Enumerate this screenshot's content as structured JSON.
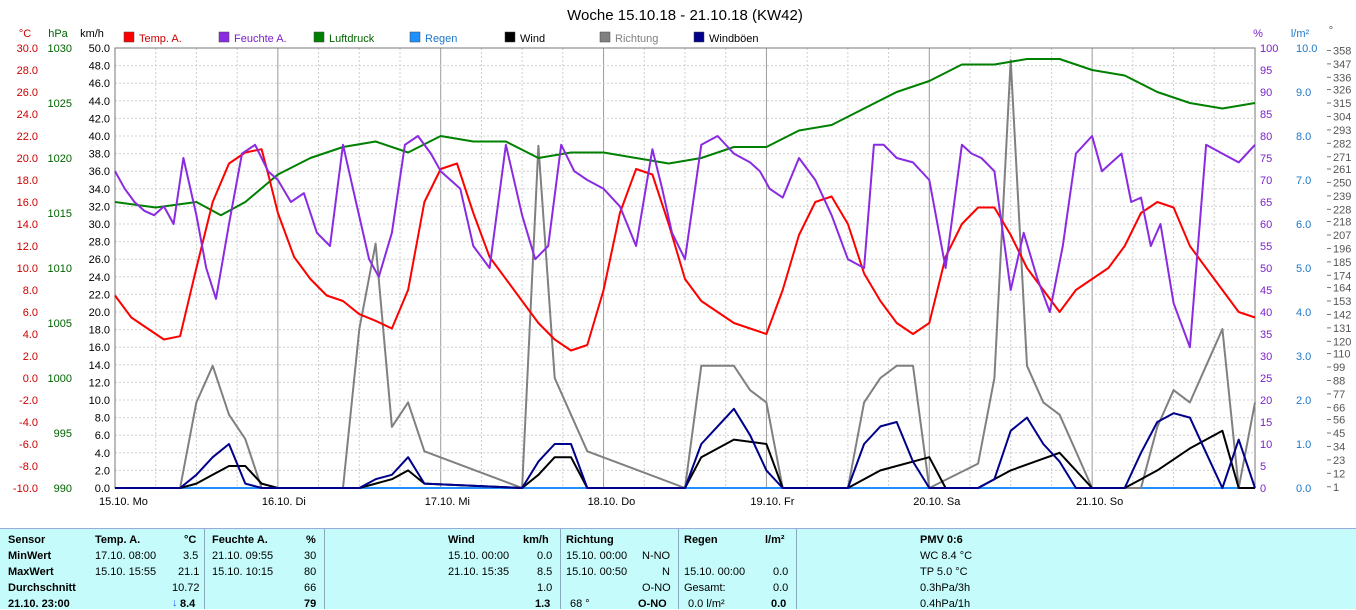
{
  "chart_data": {
    "type": "line",
    "title": "Woche 15.10.18 - 21.10.18 (KW42)",
    "axes": {
      "temp": {
        "unit": "°C",
        "range": [
          -10,
          30
        ],
        "ticks": [
          "30.0",
          "28.0",
          "26.0",
          "24.0",
          "22.0",
          "20.0",
          "18.0",
          "16.0",
          "14.0",
          "12.0",
          "10.0",
          "8.0",
          "6.0",
          "4.0",
          "2.0",
          "0.0",
          "-2.0",
          "-4.0",
          "-6.0",
          "-8.0",
          "-10.0"
        ]
      },
      "pressure": {
        "unit": "hPa",
        "range": [
          990,
          1030
        ],
        "ticks": [
          "1030",
          "1025",
          "1020",
          "1015",
          "1010",
          "1005",
          "1000",
          "995",
          "990"
        ]
      },
      "wind": {
        "unit": "km/h",
        "range": [
          0,
          50
        ],
        "ticks": [
          "50.0",
          "48.0",
          "46.0",
          "44.0",
          "42.0",
          "40.0",
          "38.0",
          "36.0",
          "34.0",
          "32.0",
          "30.0",
          "28.0",
          "26.0",
          "24.0",
          "22.0",
          "20.0",
          "18.0",
          "16.0",
          "14.0",
          "12.0",
          "10.0",
          "8.0",
          "6.0",
          "4.0",
          "2.0",
          "0.0"
        ]
      },
      "humidity": {
        "unit": "%",
        "range": [
          0,
          100
        ],
        "ticks": [
          "100",
          "95",
          "90",
          "85",
          "80",
          "75",
          "70",
          "65",
          "60",
          "55",
          "50",
          "45",
          "40",
          "35",
          "30",
          "25",
          "20",
          "15",
          "10",
          "5",
          "0"
        ]
      },
      "rain": {
        "unit": "l/m²",
        "range": [
          0,
          10
        ],
        "ticks": [
          "10.0",
          "9.0",
          "8.0",
          "7.0",
          "6.0",
          "5.0",
          "4.0",
          "3.0",
          "2.0",
          "1.0",
          "0.0"
        ]
      },
      "direction": {
        "unit": "°",
        "range": [
          0,
          360
        ],
        "ticks": [
          "358",
          "347",
          "336",
          "326",
          "315",
          "304",
          "293",
          "282",
          "271",
          "261",
          "250",
          "239",
          "228",
          "218",
          "207",
          "196",
          "185",
          "174",
          "164",
          "153",
          "142",
          "131",
          "120",
          "110",
          "99",
          "88",
          "77",
          "66",
          "56",
          "45",
          "34",
          "23",
          "12",
          "1"
        ]
      }
    },
    "x_ticks": [
      "15.10. Mo",
      "16.10. Di",
      "17.10. Mi",
      "18.10. Do",
      "19.10. Fr",
      "20.10. Sa",
      "21.10. So"
    ],
    "x_range": [
      0,
      7
    ],
    "grid": true,
    "legend": [
      {
        "name": "Temp. A.",
        "color": "#ff0000"
      },
      {
        "name": "Feuchte A.",
        "color": "#8a2be2"
      },
      {
        "name": "Luftdruck",
        "color": "#008000"
      },
      {
        "name": "Regen",
        "color": "#1e90ff"
      },
      {
        "name": "Wind",
        "color": "#000000"
      },
      {
        "name": "Richtung",
        "color": "#808080"
      },
      {
        "name": "Windböen",
        "color": "#00008b"
      }
    ],
    "series": [
      {
        "name": "Temp. A.",
        "axis": "temp",
        "color": "#ff0000",
        "x": [
          0,
          0.1,
          0.2,
          0.3,
          0.4,
          0.5,
          0.6,
          0.7,
          0.8,
          0.9,
          0.95,
          1.0,
          1.1,
          1.2,
          1.3,
          1.4,
          1.5,
          1.6,
          1.7,
          1.8,
          1.9,
          2.0,
          2.1,
          2.2,
          2.3,
          2.4,
          2.5,
          2.6,
          2.7,
          2.8,
          2.9,
          3.0,
          3.1,
          3.2,
          3.3,
          3.4,
          3.5,
          3.6,
          3.7,
          3.8,
          3.9,
          4.0,
          4.1,
          4.2,
          4.3,
          4.4,
          4.5,
          4.6,
          4.7,
          4.8,
          4.9,
          5.0,
          5.1,
          5.2,
          5.3,
          5.4,
          5.5,
          5.6,
          5.7,
          5.8,
          5.9,
          6.0,
          6.1,
          6.2,
          6.3,
          6.4,
          6.5,
          6.6,
          6.7,
          6.8,
          6.9,
          7.0
        ],
        "values": [
          7.5,
          5.5,
          4.5,
          3.5,
          3.8,
          10,
          16,
          19.5,
          20.5,
          20.8,
          18,
          15,
          11,
          9,
          7.5,
          7,
          5.8,
          5.2,
          4.5,
          8,
          16,
          19,
          19.5,
          15,
          11,
          9,
          7,
          5,
          3.5,
          2.5,
          3,
          8,
          15,
          19,
          18.5,
          14,
          9,
          7,
          6,
          5,
          4.5,
          4,
          8,
          13,
          16,
          16.5,
          14,
          9.5,
          7,
          5,
          4,
          5,
          11,
          14,
          15.5,
          15.5,
          13,
          10,
          8,
          6,
          8,
          9,
          10,
          12,
          15,
          16,
          15.5,
          12,
          10,
          8,
          6,
          5.5
        ]
      },
      {
        "name": "Feuchte A.",
        "axis": "humidity",
        "color": "#8a2be2",
        "x": [
          0,
          0.06,
          0.12,
          0.18,
          0.24,
          0.3,
          0.36,
          0.42,
          0.5,
          0.56,
          0.62,
          0.7,
          0.78,
          0.86,
          0.94,
          1.0,
          1.08,
          1.16,
          1.24,
          1.32,
          1.4,
          1.48,
          1.56,
          1.62,
          1.7,
          1.78,
          1.86,
          1.94,
          2.0,
          2.06,
          2.12,
          2.2,
          2.3,
          2.4,
          2.5,
          2.58,
          2.66,
          2.74,
          2.82,
          2.9,
          3.0,
          3.1,
          3.2,
          3.3,
          3.36,
          3.42,
          3.5,
          3.6,
          3.7,
          3.8,
          3.9,
          3.96,
          4.02,
          4.1,
          4.2,
          4.3,
          4.4,
          4.5,
          4.6,
          4.66,
          4.72,
          4.8,
          4.9,
          5.0,
          5.1,
          5.2,
          5.26,
          5.32,
          5.4,
          5.5,
          5.58,
          5.66,
          5.74,
          5.82,
          5.9,
          6.0,
          6.06,
          6.12,
          6.18,
          6.24,
          6.3,
          6.36,
          6.42,
          6.5,
          6.6,
          6.7,
          6.8,
          6.9,
          7.0
        ],
        "values": [
          72,
          68,
          65,
          63,
          62,
          64,
          60,
          75,
          62,
          50,
          43,
          60,
          76,
          78,
          72,
          70,
          65,
          67,
          58,
          55,
          78,
          65,
          52,
          48,
          58,
          78,
          80,
          76,
          72,
          70,
          68,
          55,
          50,
          78,
          62,
          52,
          55,
          78,
          72,
          70,
          68,
          64,
          55,
          77,
          68,
          58,
          52,
          78,
          80,
          76,
          74,
          72,
          68,
          66,
          75,
          70,
          62,
          52,
          50,
          78,
          78,
          75,
          74,
          70,
          50,
          78,
          76,
          75,
          72,
          45,
          58,
          48,
          40,
          55,
          76,
          80,
          72,
          74,
          76,
          65,
          66,
          55,
          60,
          42,
          32,
          78,
          76,
          74,
          78
        ]
      },
      {
        "name": "Luftdruck",
        "axis": "pressure",
        "color": "#008000",
        "x": [
          0,
          0.25,
          0.5,
          0.65,
          0.8,
          1.0,
          1.2,
          1.4,
          1.6,
          1.8,
          2.0,
          2.2,
          2.4,
          2.6,
          2.8,
          3.0,
          3.2,
          3.4,
          3.6,
          3.8,
          4.0,
          4.2,
          4.4,
          4.6,
          4.8,
          5.0,
          5.2,
          5.4,
          5.6,
          5.8,
          6.0,
          6.2,
          6.4,
          6.6,
          6.8,
          7.0
        ],
        "values": [
          1016,
          1015.5,
          1016,
          1014.8,
          1016,
          1018.5,
          1020,
          1021,
          1021.5,
          1020.5,
          1022,
          1021.5,
          1021.5,
          1020,
          1020.5,
          1020.5,
          1020,
          1019.5,
          1020,
          1021,
          1021,
          1022.5,
          1023,
          1024.5,
          1026,
          1027,
          1028.5,
          1028.5,
          1029,
          1029,
          1028,
          1027.5,
          1026,
          1025,
          1024.5,
          1025
        ]
      },
      {
        "name": "Regen",
        "axis": "rain",
        "color": "#1e90ff",
        "x": [
          0,
          7
        ],
        "values": [
          0,
          0
        ]
      },
      {
        "name": "Wind",
        "axis": "wind",
        "color": "#000000",
        "x": [
          0,
          0.4,
          0.5,
          0.6,
          0.7,
          0.8,
          0.9,
          1.0,
          1.5,
          1.6,
          1.7,
          1.8,
          1.9,
          2.5,
          2.6,
          2.7,
          2.8,
          2.9,
          3.5,
          3.6,
          3.8,
          4.0,
          4.1,
          4.5,
          4.7,
          5.0,
          5.1,
          5.2,
          5.3,
          5.5,
          5.8,
          6.0,
          6.2,
          6.4,
          6.6,
          6.8,
          6.9,
          7.0
        ],
        "values": [
          0,
          0,
          0.5,
          1.5,
          2.5,
          2.5,
          0.5,
          0,
          0,
          0.5,
          1,
          2,
          0.5,
          0,
          1.5,
          3.5,
          3.5,
          0,
          0,
          3.5,
          5.5,
          5,
          0,
          0,
          2,
          3.5,
          0,
          0,
          0,
          2,
          4,
          0,
          0,
          2,
          4.5,
          6.5,
          0,
          0
        ]
      },
      {
        "name": "Richtung",
        "axis": "direction",
        "color": "#808080",
        "x": [
          0,
          0.4,
          0.5,
          0.6,
          0.7,
          0.8,
          0.9,
          1.0,
          1.4,
          1.5,
          1.6,
          1.7,
          1.8,
          1.9,
          2.5,
          2.6,
          2.7,
          2.8,
          2.9,
          3.5,
          3.6,
          3.8,
          3.9,
          4.0,
          4.1,
          4.5,
          4.6,
          4.7,
          4.8,
          4.9,
          5.0,
          5.3,
          5.4,
          5.5,
          5.6,
          5.7,
          5.8,
          5.9,
          6.0,
          6.3,
          6.4,
          6.5,
          6.6,
          6.7,
          6.8,
          6.9,
          7.0
        ],
        "values": [
          0,
          0,
          70,
          100,
          60,
          40,
          0,
          0,
          0,
          130,
          200,
          50,
          70,
          30,
          0,
          280,
          90,
          60,
          30,
          0,
          100,
          100,
          80,
          70,
          0,
          0,
          70,
          90,
          100,
          100,
          0,
          20,
          90,
          350,
          100,
          70,
          60,
          30,
          0,
          0,
          50,
          80,
          70,
          100,
          130,
          0,
          70
        ]
      },
      {
        "name": "Windböen",
        "axis": "wind",
        "color": "#00008b",
        "x": [
          0,
          0.4,
          0.5,
          0.6,
          0.7,
          0.8,
          0.9,
          1.0,
          1.5,
          1.6,
          1.7,
          1.8,
          1.9,
          2.5,
          2.6,
          2.7,
          2.8,
          2.9,
          3.5,
          3.6,
          3.7,
          3.8,
          3.9,
          4.0,
          4.1,
          4.5,
          4.6,
          4.7,
          4.8,
          4.9,
          5.0,
          5.3,
          5.4,
          5.5,
          5.6,
          5.7,
          5.8,
          5.9,
          6.0,
          6.2,
          6.3,
          6.4,
          6.5,
          6.6,
          6.7,
          6.8,
          6.9,
          7.0
        ],
        "values": [
          0,
          0,
          1.5,
          3.5,
          5,
          0.5,
          0,
          0,
          0,
          1,
          1.5,
          3.5,
          0.5,
          0,
          3,
          5,
          5,
          0,
          0,
          5,
          7,
          9,
          6,
          2,
          0,
          0,
          5,
          7,
          7.5,
          3,
          0,
          0,
          1,
          6.5,
          8,
          5,
          3,
          0,
          0,
          0,
          4,
          7.5,
          8.5,
          8,
          4,
          0,
          5.5,
          0
        ]
      }
    ]
  },
  "stats": {
    "headers": {
      "sensor": "Sensor",
      "temp": "Temp. A.",
      "temp_unit": "°C",
      "feuchte": "Feuchte A.",
      "feuchte_unit": "%",
      "wind": "Wind",
      "wind_unit": "km/h",
      "richtung": "Richtung",
      "regen": "Regen",
      "regen_unit": "l/m²",
      "pmv": "PMV 0:6"
    },
    "rows": {
      "min": {
        "label": "MinWert",
        "temp_dt": "17.10.  08:00",
        "temp_val": "3.5",
        "feuchte_dt": "21.10.  09:55",
        "feuchte_val": "30",
        "wind_dt": "15.10.  00:00",
        "wind_val": "0.0",
        "richtung_dt": "15.10.  00:00",
        "richtung_val": "N-NO",
        "pmv": "WC 8.4 °C"
      },
      "max": {
        "label": "MaxWert",
        "temp_dt": "15.10.  15:55",
        "temp_val": "21.1",
        "feuchte_dt": "15.10.  10:15",
        "feuchte_val": "80",
        "wind_dt": "21.10.  15:35",
        "wind_val": "8.5",
        "richtung_dt": "15.10.  00:50",
        "richtung_val": "N",
        "regen_dt": "15.10.  00:00",
        "regen_val": "0.0",
        "pmv": "TP 5.0 °C"
      },
      "avg": {
        "label": "Durchschnitt",
        "temp_val": "10.72",
        "feuchte_val": "66",
        "wind_val": "1.0",
        "richtung_val": "O-NO",
        "regen_label": "Gesamt:",
        "regen_val": "0.0",
        "pmv": "0.3hPa/3h"
      },
      "cur": {
        "label": "21.10.  23:00",
        "temp_arrow": "↓",
        "temp_val": "8.4",
        "feuchte_val": "79",
        "wind_val": "1.3",
        "richtung_deg": "68 °",
        "richtung_val": "O-NO",
        "regen_rate": "0.0 l/m²",
        "regen_val": "0.0",
        "pmv": "0.4hPa/1h"
      }
    }
  }
}
